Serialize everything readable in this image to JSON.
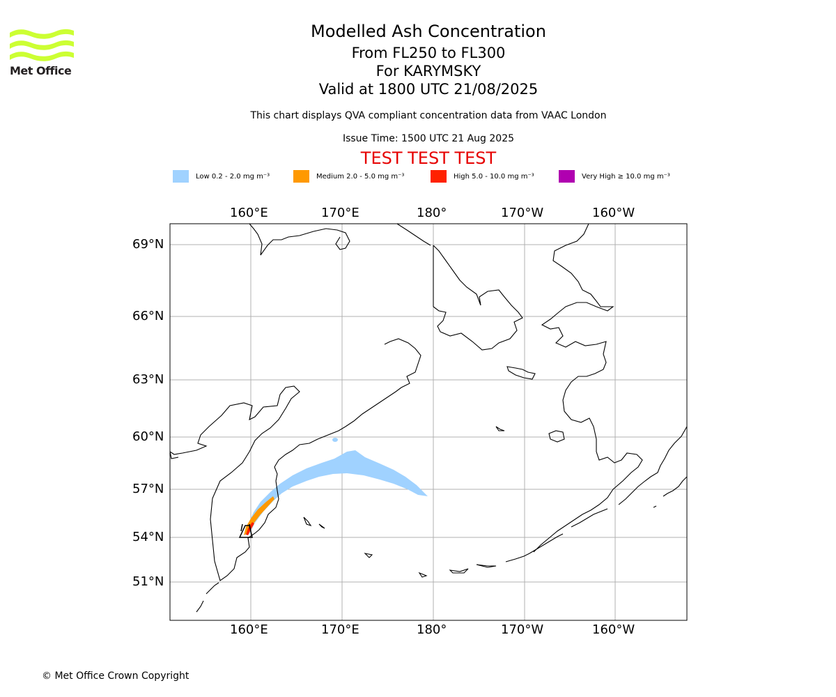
{
  "header": {
    "title": "Modelled Ash Concentration",
    "levels": "From FL250 to FL300",
    "volcano": "For KARYMSKY",
    "valid": "Valid at 1800 UTC 21/08/2025",
    "qva_note": "This chart displays QVA compliant concentration data from VAAC London",
    "issue_time": "Issue Time: 1500 UTC 21 Aug 2025",
    "test_banner": "TEST TEST TEST"
  },
  "logo": {
    "text": "Met Office",
    "color": "#ccff33"
  },
  "legend": [
    {
      "label": "Low 0.2 - 2.0 mg m⁻³",
      "color": "#a0d2ff"
    },
    {
      "label": "Medium 2.0 - 5.0 mg m⁻³",
      "color": "#ff9900"
    },
    {
      "label": "High 5.0 - 10.0 mg m⁻³",
      "color": "#ff2200"
    },
    {
      "label": "Very High ≥ 10.0 mg m⁻³",
      "color": "#b000b0"
    }
  ],
  "map": {
    "lon_labels": [
      "160°E",
      "170°E",
      "180°",
      "170°W",
      "160°W"
    ],
    "lat_labels": [
      "69°N",
      "66°N",
      "63°N",
      "60°N",
      "57°N",
      "54°N",
      "51°N"
    ],
    "grid": true
  },
  "footer": {
    "copyright": "© Met Office Crown Copyright"
  }
}
